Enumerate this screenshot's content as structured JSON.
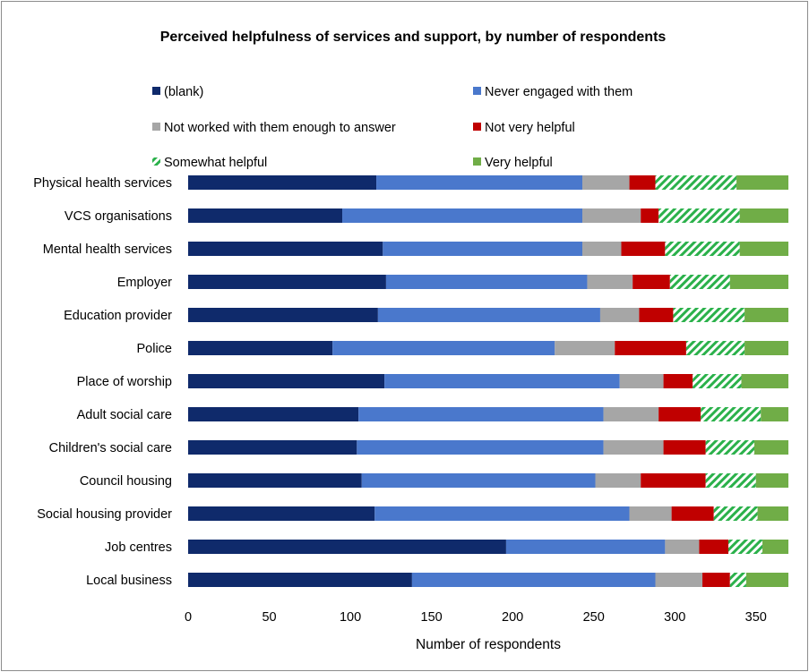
{
  "chart_data": {
    "type": "bar",
    "orientation": "horizontal",
    "stacked": true,
    "title": "Perceived helpfulness of services and support, by number of respondents",
    "xlabel": "Number of respondents",
    "ylabel": "",
    "xlim": [
      0,
      370
    ],
    "xticks": [
      0,
      50,
      100,
      150,
      200,
      250,
      300,
      350
    ],
    "grid": false,
    "legend_position": "top",
    "categories": [
      "Physical health services",
      "VCS organisations",
      "Mental health services",
      "Employer",
      "Education provider",
      "Police",
      "Place of worship",
      "Adult social care",
      "Children's social care",
      "Council housing",
      "Social housing provider",
      "Job centres",
      "Local business"
    ],
    "series": [
      {
        "name": "(blank)",
        "color": "#0f2a6b",
        "pattern": "solid",
        "values": [
          116,
          95,
          120,
          122,
          117,
          89,
          121,
          105,
          104,
          107,
          115,
          196,
          138
        ]
      },
      {
        "name": "Never engaged with them",
        "color": "#4a78cc",
        "pattern": "solid",
        "values": [
          127,
          148,
          123,
          124,
          137,
          137,
          145,
          151,
          152,
          144,
          157,
          98,
          150
        ]
      },
      {
        "name": "Not worked with them enough to answer",
        "color": "#a6a6a6",
        "pattern": "solid",
        "values": [
          29,
          36,
          24,
          28,
          24,
          37,
          27,
          34,
          37,
          28,
          26,
          21,
          29
        ]
      },
      {
        "name": "Not very helpful",
        "color": "#c00000",
        "pattern": "solid",
        "values": [
          16,
          11,
          27,
          23,
          21,
          44,
          18,
          26,
          26,
          40,
          26,
          18,
          17
        ]
      },
      {
        "name": "Somewhat helpful",
        "color": "#2bb14b",
        "pattern": "hatch",
        "values": [
          50,
          50,
          46,
          37,
          44,
          36,
          30,
          37,
          30,
          31,
          27,
          21,
          10
        ]
      },
      {
        "name": "Very helpful",
        "color": "#70ad47",
        "pattern": "solid",
        "values": [
          32,
          30,
          30,
          36,
          27,
          27,
          29,
          17,
          21,
          20,
          19,
          16,
          26
        ]
      }
    ]
  }
}
